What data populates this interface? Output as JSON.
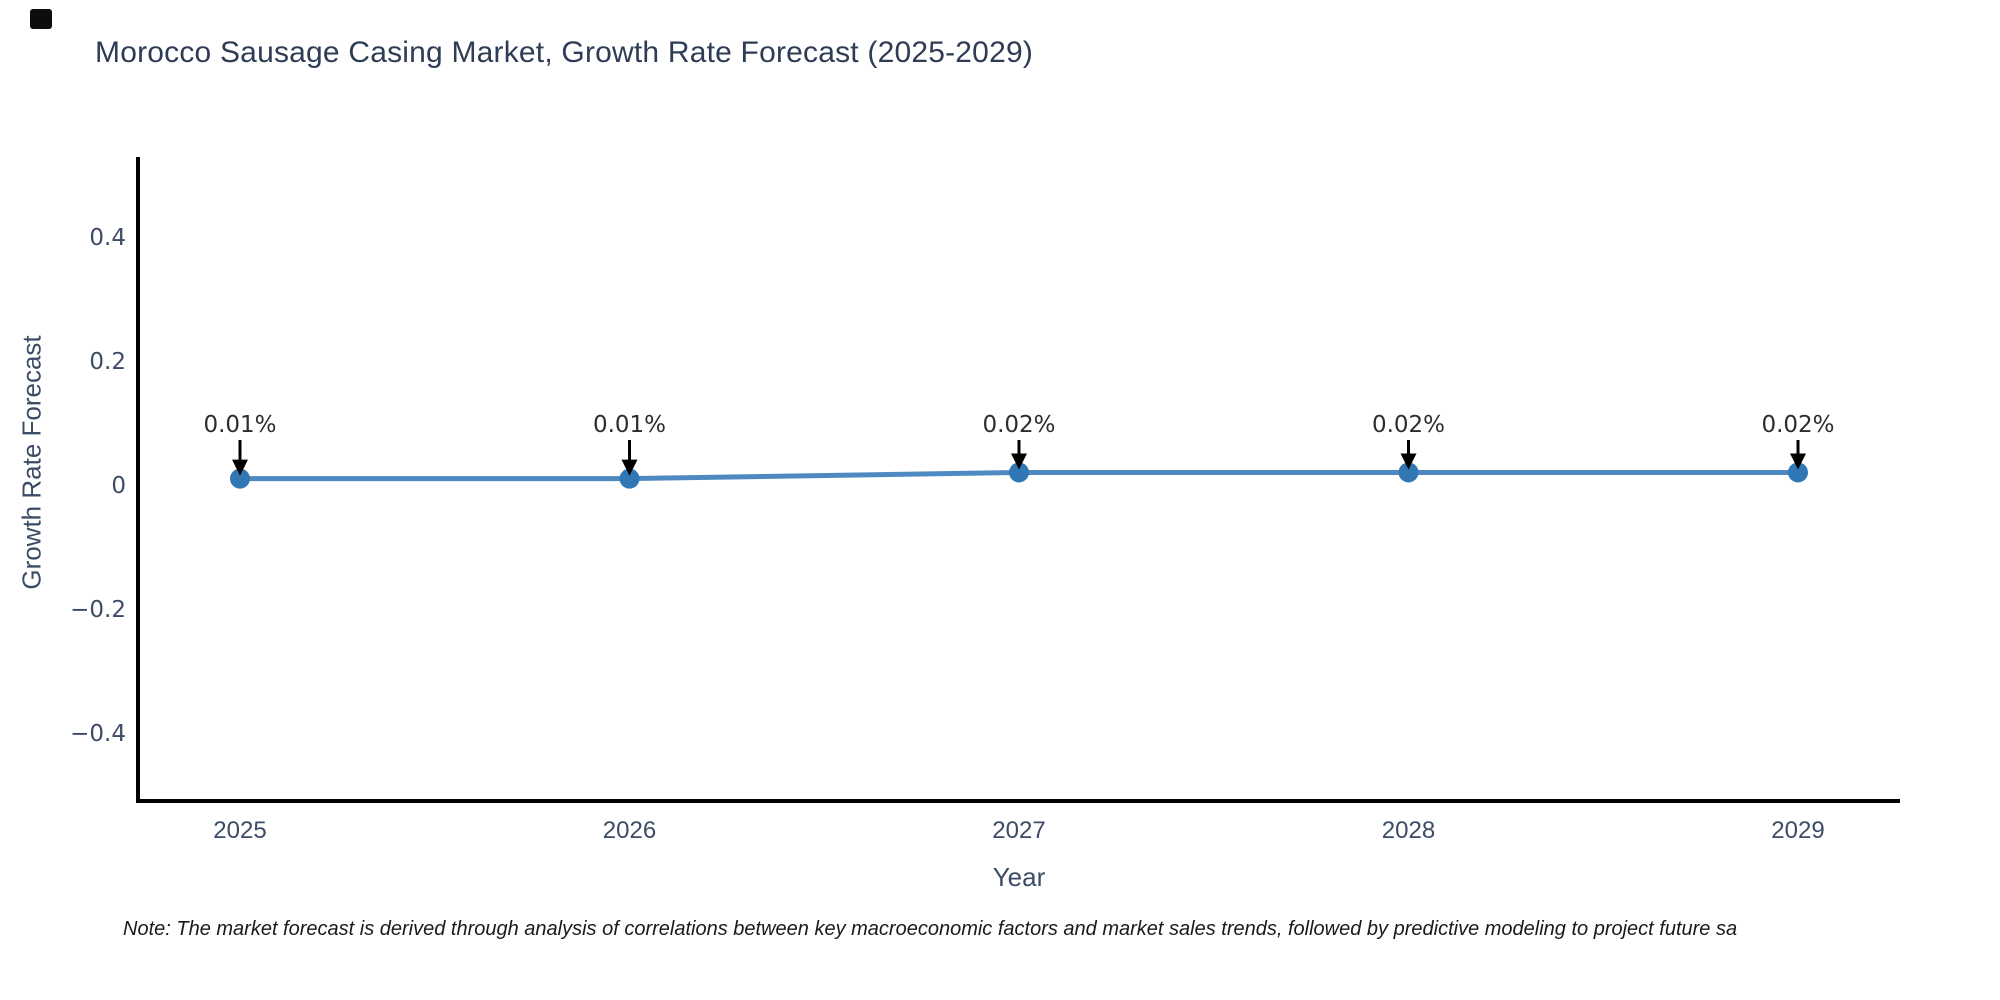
{
  "page": {
    "background": "#ffffff",
    "corner_mark_color": "#0d0d0d"
  },
  "chart_data": {
    "type": "line",
    "title": "Morocco Sausage Casing Market, Growth Rate Forecast (2025-2029)",
    "xlabel": "Year",
    "ylabel": "Growth Rate Forecast",
    "categories": [
      "2025",
      "2026",
      "2027",
      "2028",
      "2029"
    ],
    "series": [
      {
        "name": "Growth Rate Forecast",
        "values": [
          0.01,
          0.01,
          0.02,
          0.02,
          0.02
        ]
      }
    ],
    "point_labels": [
      "0.01%",
      "0.01%",
      "0.02%",
      "0.02%",
      "0.02%"
    ],
    "yticks": [
      0.4,
      0.2,
      0,
      -0.2,
      -0.4
    ],
    "ytick_labels": [
      "0.4",
      "0.2",
      "0",
      "−0.2",
      "−0.4"
    ],
    "ylim": [
      -0.51,
      0.524
    ],
    "grid": false,
    "legend_position": "none",
    "line_color": "#4e8ac1",
    "marker_color": "#3077b4",
    "spine_color": "#000000",
    "annotation_arrow_color": "#000000"
  },
  "note": {
    "text": "Note: The market forecast is derived through analysis of correlations between key macroeconomic factors and market sales trends, followed by predictive modeling to project future sa"
  },
  "colors": {
    "title_text": "#2e3c55",
    "axis_text": "#3d4c66",
    "note_text": "#1a1a1a"
  }
}
